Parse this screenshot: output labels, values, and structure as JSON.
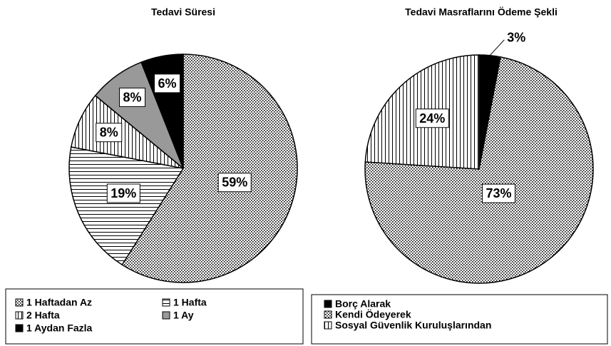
{
  "chart_data": [
    {
      "type": "pie",
      "title": "Tedavi Süresi",
      "categories": [
        "1 Haftadan Az",
        "1 Hafta",
        "2 Hafta",
        "1 Ay",
        "1 Aydan Fazla"
      ],
      "values": [
        59,
        19,
        8,
        8,
        6
      ],
      "value_labels": [
        "59%",
        "19%",
        "8%",
        "8%",
        "6%"
      ],
      "patterns": [
        "dots",
        "hlines",
        "vlines",
        "gray",
        "black"
      ]
    },
    {
      "type": "pie",
      "title": "Tedavi Masraflarını Ödeme Şekli",
      "categories": [
        "Borç Alarak",
        "Kendi Ödeyerek",
        "Sosyal Güvenlik Kuruluşlarından"
      ],
      "values": [
        3,
        73,
        24
      ],
      "value_labels": [
        "3%",
        "73%",
        "24%"
      ],
      "patterns": [
        "black",
        "dots",
        "vlines"
      ]
    }
  ]
}
